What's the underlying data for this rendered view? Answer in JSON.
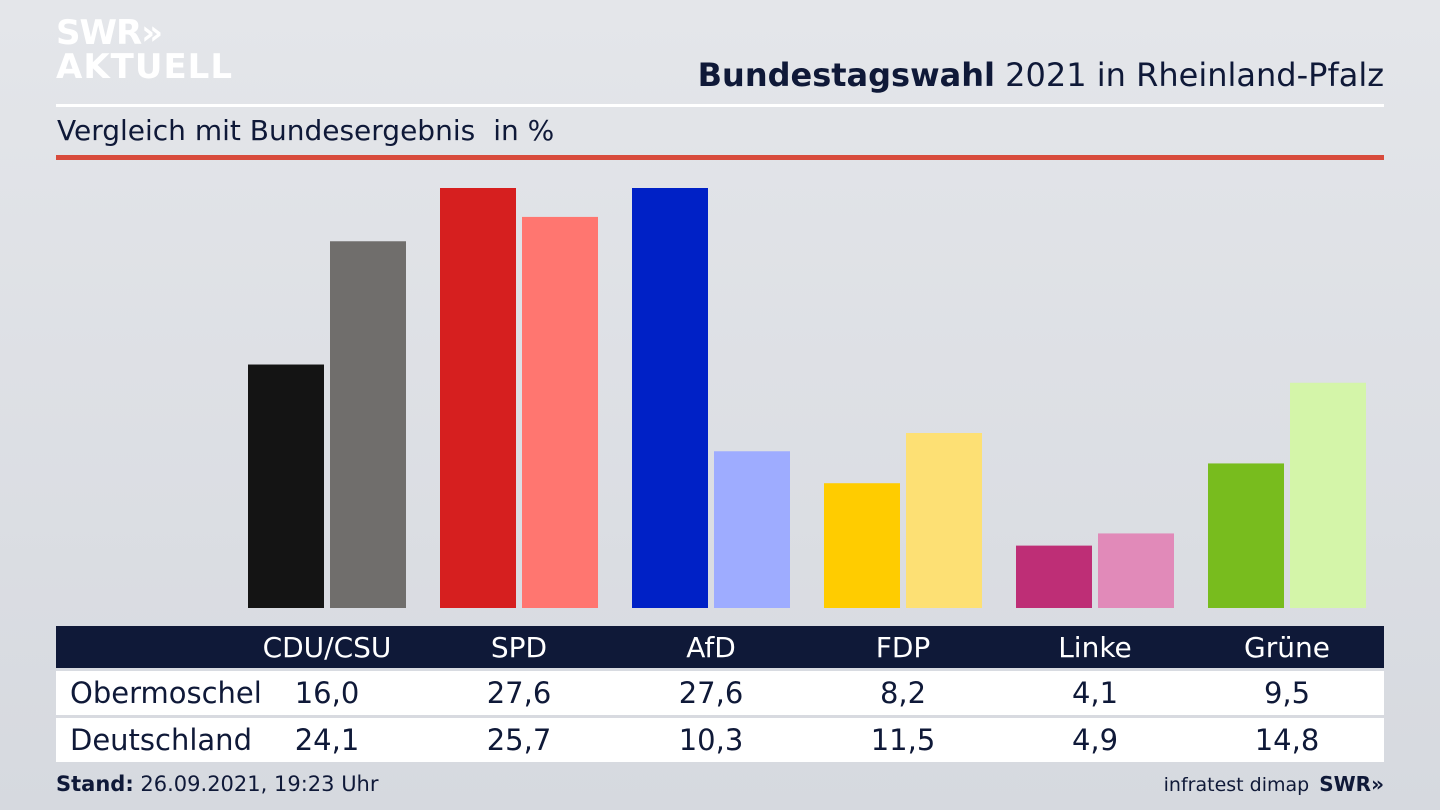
{
  "branding": {
    "logo_line1": "SWR»",
    "logo_line2": "AKTUELL",
    "source": "infratest dimap",
    "brand_small": "SWR»"
  },
  "header": {
    "title_bold": "Bundestagswahl",
    "title_rest": "2021 in Rheinland-Pfalz",
    "subtitle": "Vergleich mit Bundesergebnis",
    "unit": "in %"
  },
  "footer": {
    "stand_label": "Stand:",
    "stand_value": "26.09.2021, 19:23 Uhr"
  },
  "table": {
    "headers": [
      "CDU/CSU",
      "SPD",
      "AfD",
      "FDP",
      "Linke",
      "Grüne"
    ],
    "rows": [
      {
        "label": "Obermoschel",
        "values": [
          "16,0",
          "27,6",
          "27,6",
          "8,2",
          "4,1",
          "9,5"
        ]
      },
      {
        "label": "Deutschland",
        "values": [
          "24,1",
          "25,7",
          "10,3",
          "11,5",
          "4,9",
          "14,8"
        ]
      }
    ]
  },
  "chart_data": {
    "type": "bar",
    "categories": [
      "CDU/CSU",
      "SPD",
      "AfD",
      "FDP",
      "Linke",
      "Grüne"
    ],
    "series": [
      {
        "name": "Obermoschel",
        "values": [
          16.0,
          27.6,
          27.6,
          8.2,
          4.1,
          9.5
        ],
        "colors": [
          "#141414",
          "#d61f1f",
          "#0021c6",
          "#ffcc00",
          "#be2e76",
          "#78bc1e"
        ]
      },
      {
        "name": "Deutschland",
        "values": [
          24.1,
          25.7,
          10.3,
          11.5,
          4.9,
          14.8
        ],
        "colors": [
          "#706e6c",
          "#ff7670",
          "#9eacff",
          "#fde074",
          "#e18ab9",
          "#d4f5a9"
        ]
      }
    ],
    "title": "Bundestagswahl 2021 in Rheinland-Pfalz",
    "subtitle": "Vergleich mit Bundesergebnis",
    "ylabel": "in %",
    "ylim": [
      0,
      27.6
    ],
    "grid": false
  }
}
